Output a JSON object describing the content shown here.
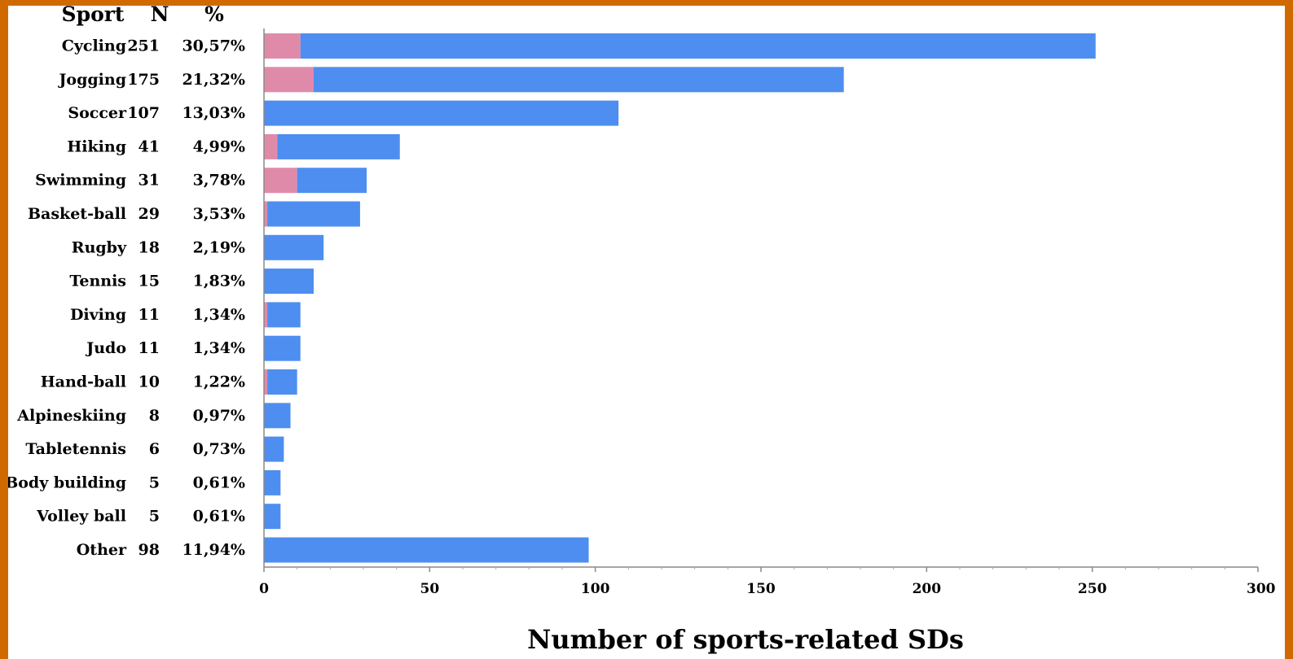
{
  "chart_data": {
    "type": "bar",
    "orientation": "horizontal",
    "stacked": true,
    "table_headers": {
      "sport": "Sport",
      "n": "N",
      "percent": "%"
    },
    "categories": [
      "Cycling",
      "Jogging",
      "Soccer",
      "Hiking",
      "Swimming",
      "Basket-ball",
      "Rugby",
      "Tennis",
      "Diving",
      "Judo",
      "Hand-ball",
      "Alpineskiing",
      "Tabletennis",
      "Body building",
      "Volley ball",
      "Other"
    ],
    "n_values": [
      "251",
      "175",
      "107",
      "41",
      "31",
      "29",
      "18",
      "15",
      "11",
      "11",
      "10",
      "8",
      "6",
      "5",
      "5",
      "98"
    ],
    "percent_values": [
      "30,57%",
      "21,32%",
      "13,03%",
      "4,99%",
      "3,78%",
      "3,53%",
      "2,19%",
      "1,83%",
      "1,34%",
      "1,34%",
      "1,22%",
      "0,97%",
      "0,73%",
      "0,61%",
      "0,61%",
      "11,94%"
    ],
    "series": [
      {
        "values": [
          11,
          15,
          0,
          4,
          10,
          1,
          0,
          0,
          1,
          0,
          1,
          0,
          0,
          0,
          0,
          0
        ],
        "color": "#E08AAA"
      },
      {
        "values": [
          240,
          160,
          107,
          37,
          21,
          28,
          18,
          15,
          10,
          11,
          9,
          8,
          6,
          5,
          5,
          98
        ],
        "color": "#4D8EF0"
      }
    ],
    "xlabel": "Number of sports-related SDs",
    "xlim": [
      0,
      300
    ],
    "xticks": [
      0,
      50,
      100,
      150,
      200,
      250,
      300
    ],
    "grid": false,
    "legend": "none"
  }
}
